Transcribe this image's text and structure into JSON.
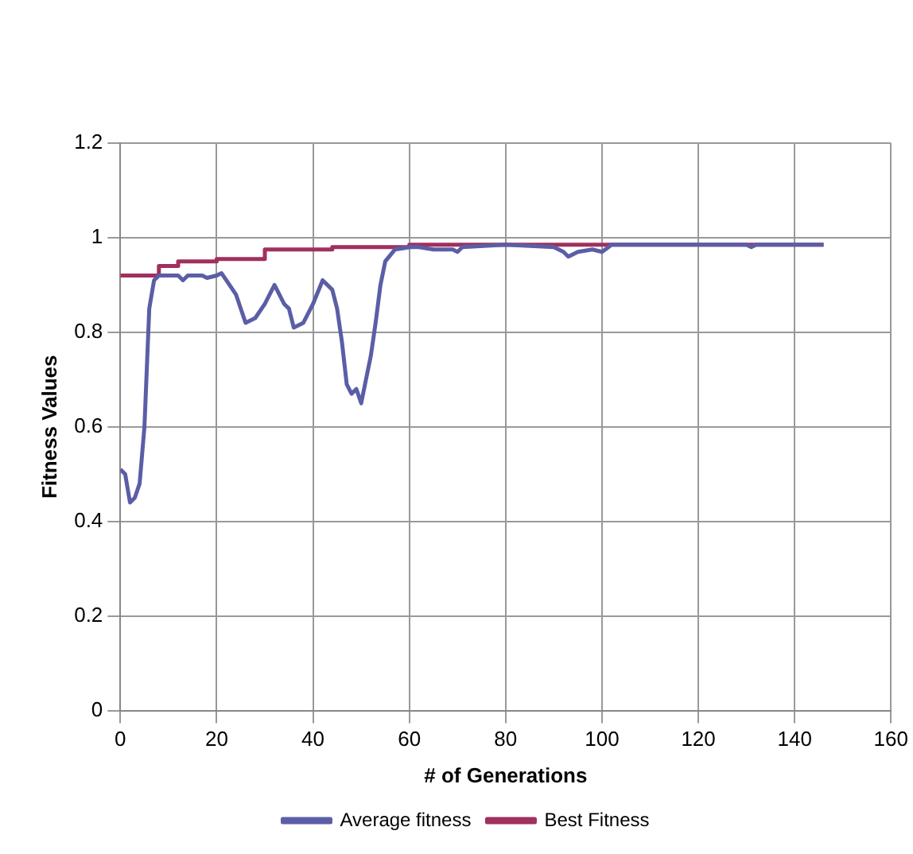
{
  "chart_data": {
    "type": "line",
    "xlabel": "# of Generations",
    "ylabel": "Fitness Values",
    "xlim": [
      0,
      160
    ],
    "xticks": [
      0,
      20,
      40,
      60,
      80,
      100,
      120,
      140,
      160
    ],
    "ylim": [
      0,
      1.2
    ],
    "yticks": [
      0,
      {
        "value": 0.2,
        "label": "0.2"
      },
      {
        "value": 0.4,
        "label": "0.4"
      },
      {
        "value": 0.6,
        "label": "0.6"
      },
      {
        "value": 0.8,
        "label": "0.8"
      },
      1,
      {
        "value": 1.2,
        "label": "1.2"
      }
    ],
    "grid": true,
    "legend": "bottom",
    "marker": "none",
    "series": [
      {
        "name": "Average fitness",
        "color": "#5b5ea6",
        "x": [
          0,
          1,
          2,
          3,
          4,
          5,
          6,
          7,
          8,
          10,
          12,
          13,
          14,
          17,
          18,
          20,
          21,
          22,
          24,
          26,
          28,
          30,
          32,
          34,
          35,
          36,
          38,
          40,
          42,
          44,
          45,
          46,
          47,
          48,
          49,
          50,
          51,
          52,
          53,
          54,
          55,
          57,
          60,
          62,
          65,
          67,
          69,
          70,
          71,
          80,
          90,
          92,
          93,
          95,
          98,
          100,
          102,
          110,
          120,
          130,
          131,
          132,
          141,
          146
        ],
        "values": [
          0.51,
          0.5,
          0.44,
          0.45,
          0.48,
          0.6,
          0.85,
          0.91,
          0.92,
          0.92,
          0.92,
          0.91,
          0.92,
          0.92,
          0.915,
          0.92,
          0.925,
          0.91,
          0.88,
          0.82,
          0.83,
          0.86,
          0.9,
          0.86,
          0.85,
          0.81,
          0.82,
          0.86,
          0.91,
          0.89,
          0.85,
          0.78,
          0.69,
          0.67,
          0.68,
          0.65,
          0.7,
          0.75,
          0.82,
          0.9,
          0.95,
          0.975,
          0.98,
          0.98,
          0.975,
          0.975,
          0.975,
          0.97,
          0.98,
          0.985,
          0.98,
          0.97,
          0.96,
          0.97,
          0.975,
          0.97,
          0.985,
          0.985,
          0.985,
          0.985,
          0.98,
          0.985,
          0.985,
          0.985
        ]
      },
      {
        "name": "Best Fitness",
        "type": "step",
        "color": "#a0305e",
        "x": [
          0,
          8,
          12,
          20,
          30,
          44,
          60,
          146
        ],
        "values": [
          0.92,
          0.94,
          0.95,
          0.955,
          0.975,
          0.98,
          0.985,
          0.985
        ]
      }
    ]
  }
}
